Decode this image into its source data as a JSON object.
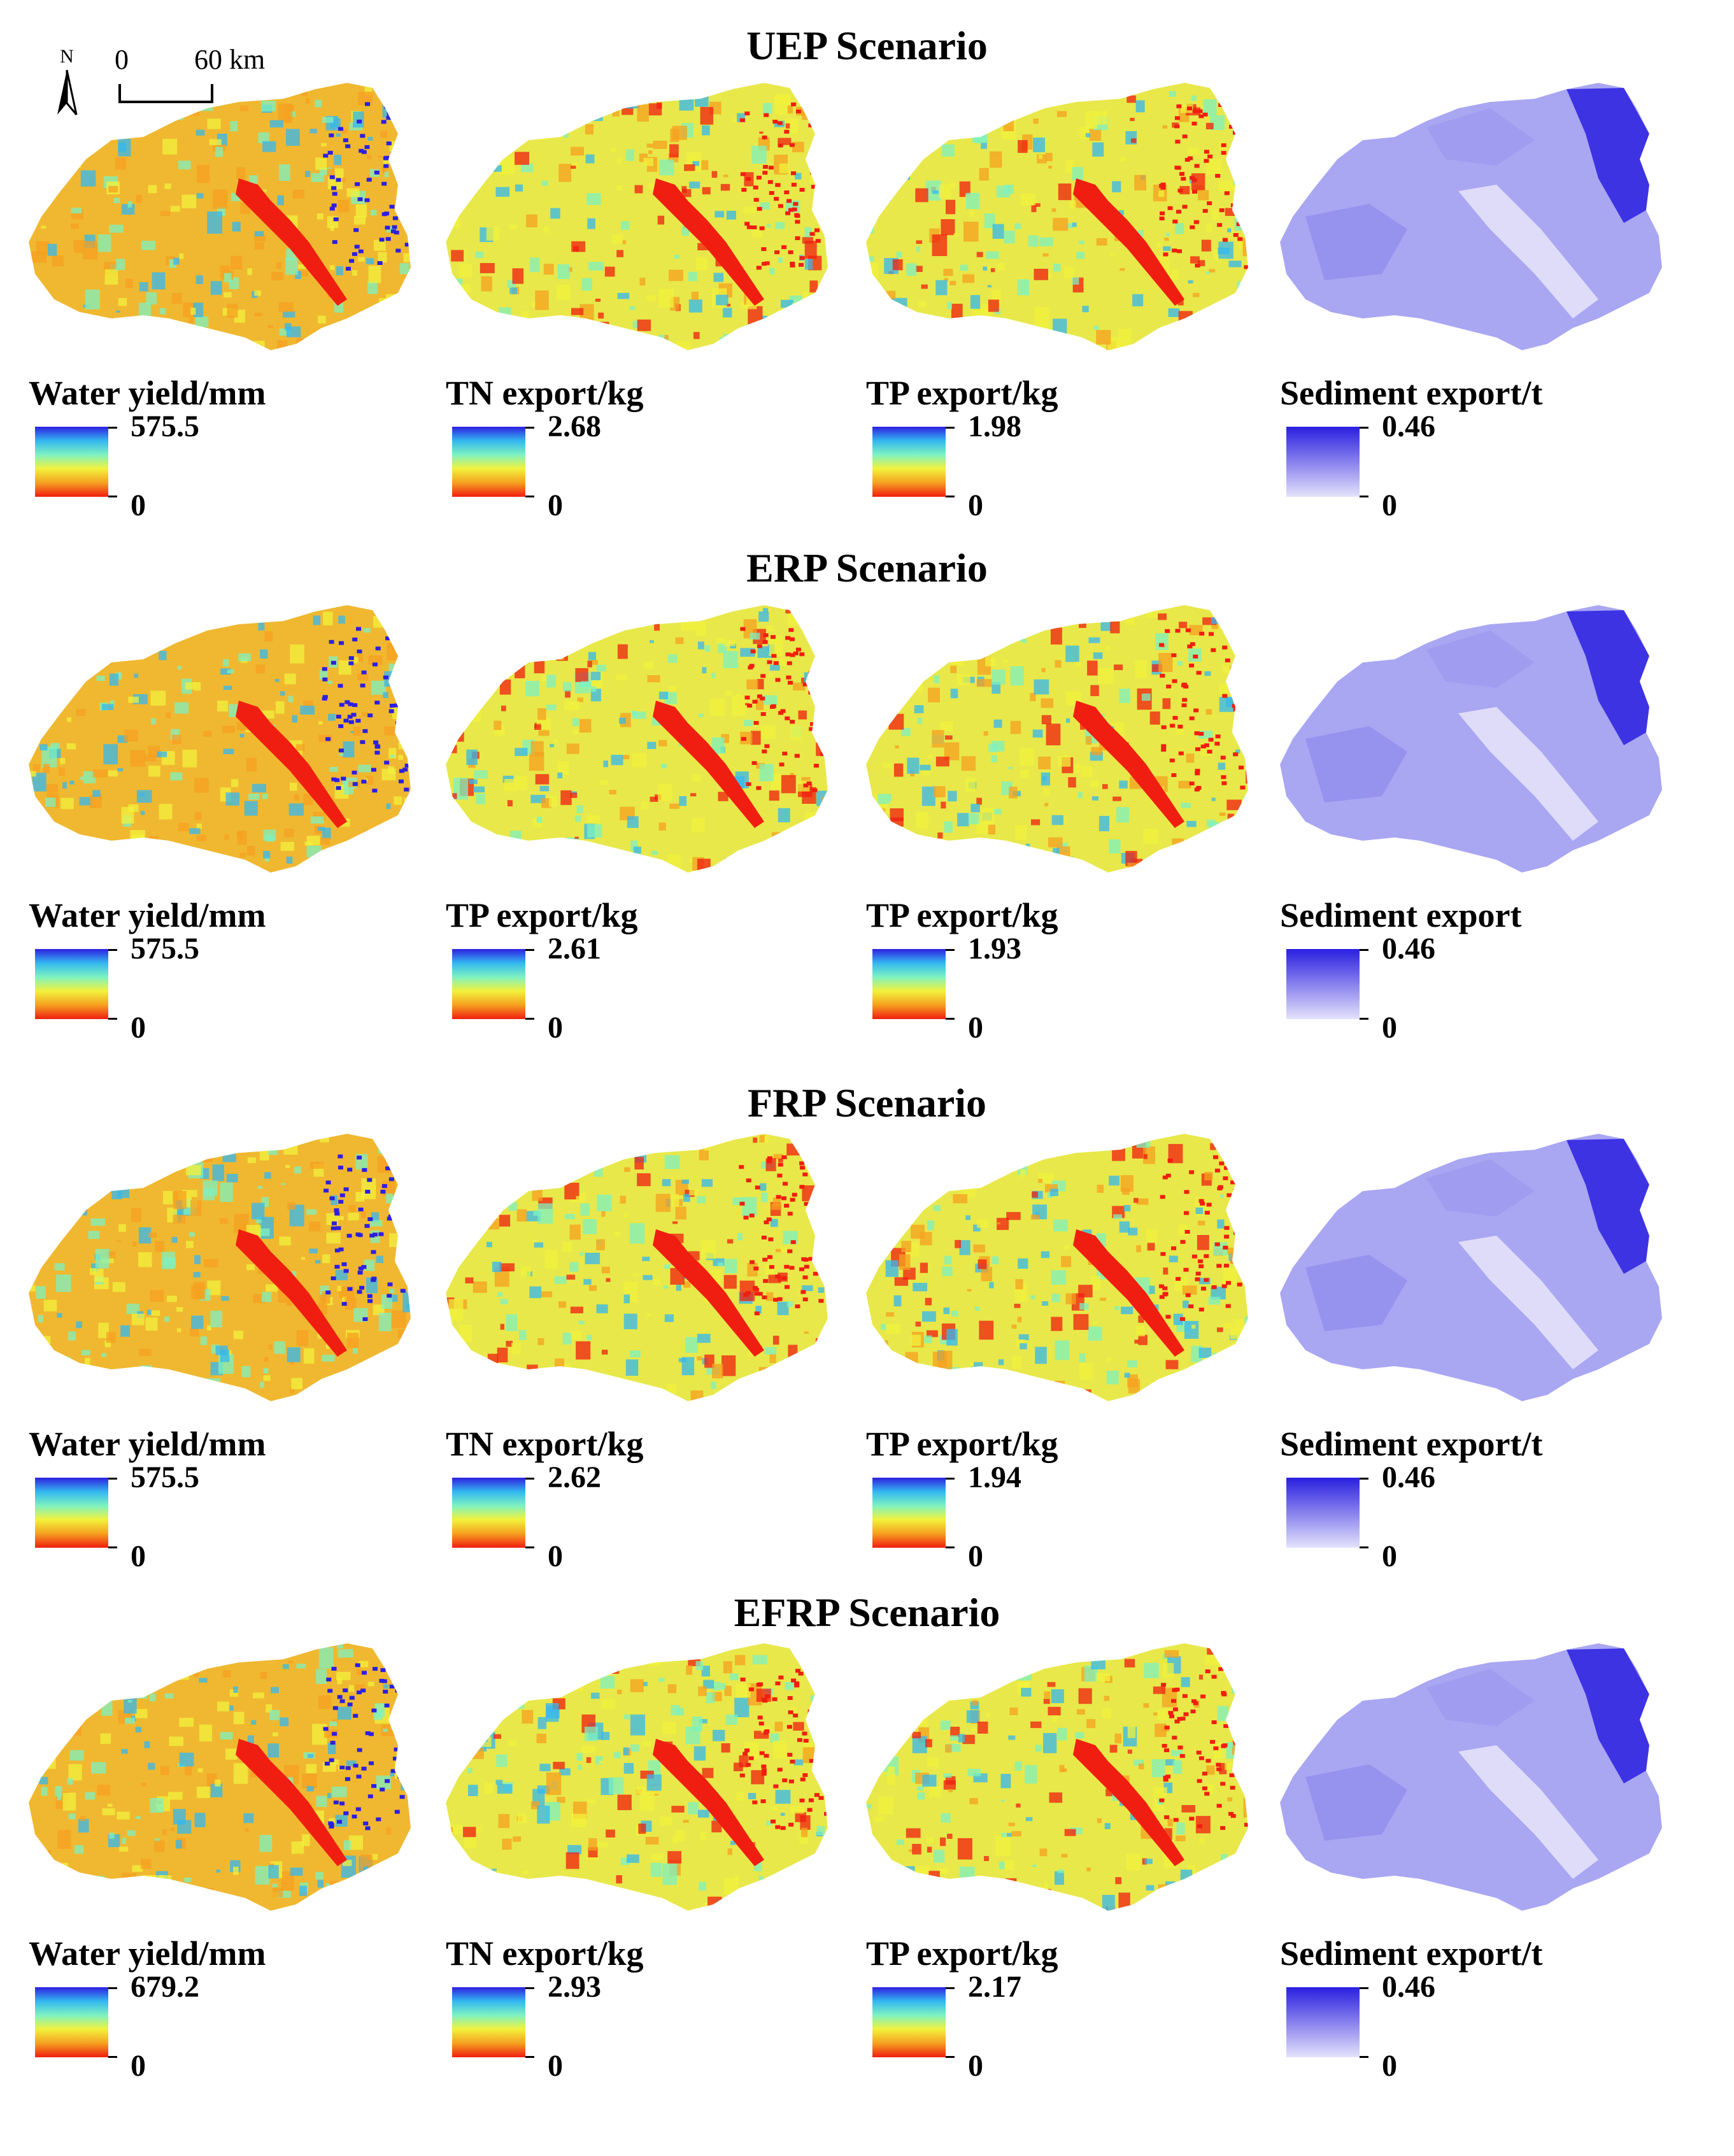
{
  "colors": {
    "spectral": [
      "#2d1fe0",
      "#33b8f0",
      "#7ef2c0",
      "#f2f23c",
      "#f5a020",
      "#f01e10"
    ],
    "purple_high": "#2a1fe0",
    "purple_low": "#e4e2fb",
    "river": "#f01e10"
  },
  "scale_bar": {
    "north_label": "N",
    "zero_label": "0",
    "distance_label": "60 km"
  },
  "scenarios": [
    {
      "title": "UEP Scenario",
      "panels": [
        {
          "legend_title": "Water yield/mm",
          "max": "575.5",
          "min": "0",
          "type": "spectral"
        },
        {
          "legend_title": "TN  export/kg",
          "max": "2.68",
          "min": "0",
          "type": "spectral"
        },
        {
          "legend_title": "TP export/kg",
          "max": "1.98",
          "min": "0",
          "type": "spectral"
        },
        {
          "legend_title": "Sediment export/t",
          "max": "0.46",
          "min": "0",
          "type": "purple"
        }
      ]
    },
    {
      "title": "ERP Scenario",
      "panels": [
        {
          "legend_title": "Water yield/mm",
          "max": "575.5",
          "min": "0",
          "type": "spectral"
        },
        {
          "legend_title": "TP export/kg",
          "max": "2.61",
          "min": "0",
          "type": "spectral"
        },
        {
          "legend_title": "TP export/kg",
          "max": "1.93",
          "min": "0",
          "type": "spectral"
        },
        {
          "legend_title": "Sediment export",
          "max": "0.46",
          "min": "0",
          "type": "purple"
        }
      ]
    },
    {
      "title": "FRP Scenario",
      "panels": [
        {
          "legend_title": "Water yield/mm",
          "max": "575.5",
          "min": "0",
          "type": "spectral"
        },
        {
          "legend_title": "TN export/kg",
          "max": "2.62",
          "min": "0",
          "type": "spectral"
        },
        {
          "legend_title": "TP export/kg",
          "max": "1.94",
          "min": "0",
          "type": "spectral"
        },
        {
          "legend_title": "Sediment export/t",
          "max": "0.46",
          "min": "0",
          "type": "purple"
        }
      ]
    },
    {
      "title": "EFRP Scenario",
      "panels": [
        {
          "legend_title": "Water yield/mm",
          "max": "679.2",
          "min": "0",
          "type": "spectral"
        },
        {
          "legend_title": "TN export/kg",
          "max": "2.93",
          "min": "0",
          "type": "spectral"
        },
        {
          "legend_title": "TP export/kg",
          "max": "2.17",
          "min": "0",
          "type": "spectral"
        },
        {
          "legend_title": "Sediment export/t",
          "max": "0.46",
          "min": "0",
          "type": "purple"
        }
      ]
    }
  ]
}
